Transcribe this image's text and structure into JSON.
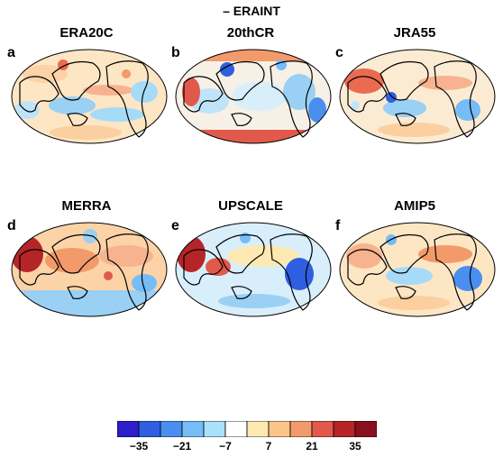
{
  "figure_title": "– ERAINT",
  "panels": [
    {
      "letter": "a",
      "title": "ERA20C"
    },
    {
      "letter": "b",
      "title": "20thCR"
    },
    {
      "letter": "c",
      "title": "JRA55"
    },
    {
      "letter": "d",
      "title": "MERRA"
    },
    {
      "letter": "e",
      "title": "UPSCALE"
    },
    {
      "letter": "f",
      "title": "AMIP5"
    }
  ],
  "colorbar": {
    "colors": [
      "#2a1fc8",
      "#2f5fe0",
      "#4a8fef",
      "#76bcf6",
      "#a9e1fb",
      "#ffffff",
      "#fde9b1",
      "#fbc58a",
      "#f39a6a",
      "#e1594a",
      "#b52527",
      "#8a0f1f"
    ],
    "tick_labels": [
      "−35",
      "−21",
      "−7",
      "7",
      "21",
      "35"
    ]
  }
}
